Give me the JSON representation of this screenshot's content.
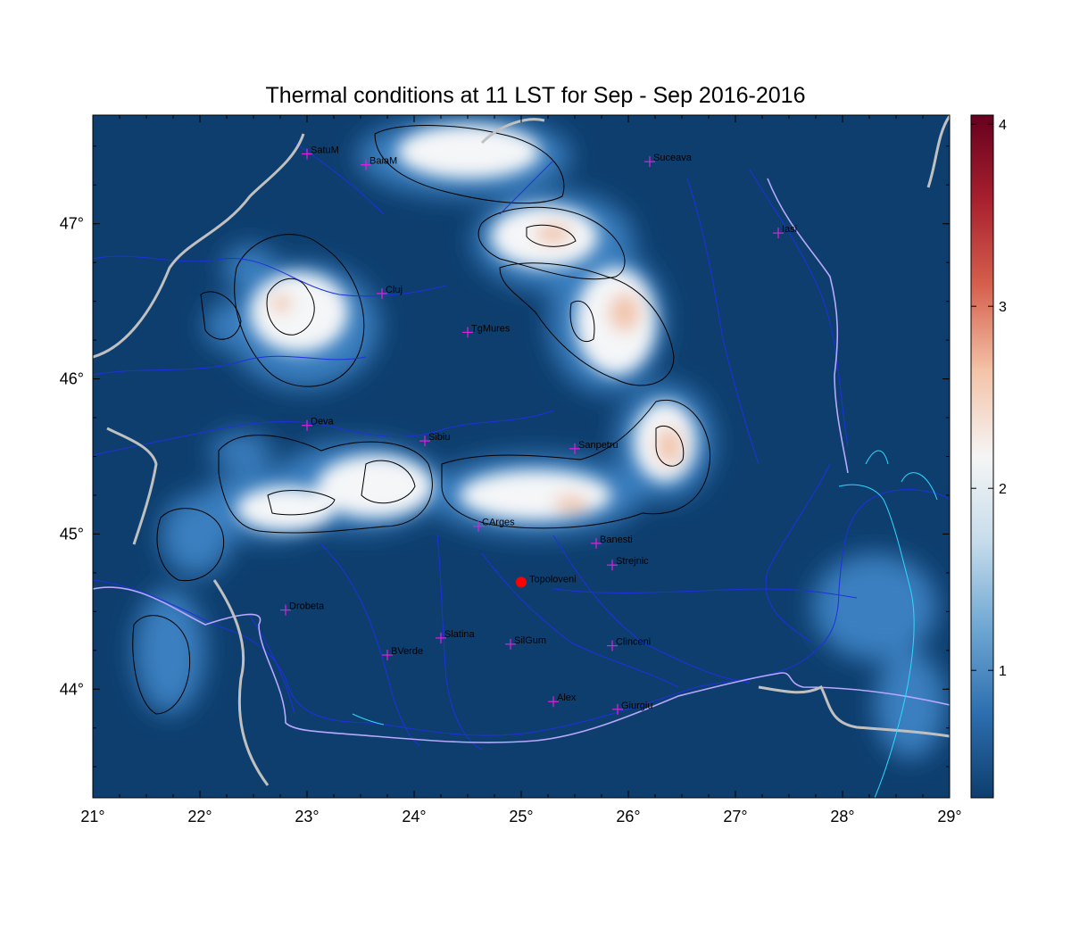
{
  "title": "Thermal conditions at 11 LST for Sep - Sep  2016-2016",
  "map": {
    "lon_range": [
      21,
      29
    ],
    "lat_range": [
      43.3,
      47.7
    ],
    "lon_ticks": [
      "21°",
      "22°",
      "23°",
      "24°",
      "25°",
      "26°",
      "27°",
      "28°",
      "29°"
    ],
    "lon_tick_values": [
      21,
      22,
      23,
      24,
      25,
      26,
      27,
      28,
      29
    ],
    "lat_ticks": [
      "44°",
      "45°",
      "46°",
      "47°"
    ],
    "lat_tick_values": [
      44,
      45,
      46,
      47
    ],
    "colors": {
      "background": "#0d3e6e",
      "mid": "#3a7fc0",
      "white": "#f4f6f8",
      "warm": "#f2c6ae",
      "rivers": "#2030e0",
      "border": "#c0c0c0",
      "coast": "#30d8ff",
      "contour": "#000000",
      "city_marker": "#e020e0",
      "highlight": "#ff0000"
    }
  },
  "colorbar": {
    "min": 0.3,
    "max": 4.05,
    "tick_labels": [
      "1",
      "2",
      "3",
      "4"
    ],
    "tick_values": [
      1,
      2,
      3,
      4
    ],
    "colors": [
      "#0d3e6e",
      "#2d6fb0",
      "#6fa8d3",
      "#c6dceb",
      "#f5f5f5",
      "#f4c3a8",
      "#d6604d",
      "#a8202e",
      "#67001f"
    ]
  },
  "cities": [
    {
      "name": "SatuM",
      "lon": 23.0,
      "lat": 47.45
    },
    {
      "name": "BaiaM",
      "lon": 23.55,
      "lat": 47.38
    },
    {
      "name": "Suceava",
      "lon": 26.2,
      "lat": 47.4
    },
    {
      "name": "Iasi",
      "lon": 27.4,
      "lat": 46.94
    },
    {
      "name": "Cluj",
      "lon": 23.7,
      "lat": 46.55
    },
    {
      "name": "TgMures",
      "lon": 24.5,
      "lat": 46.3
    },
    {
      "name": "Deva",
      "lon": 23.0,
      "lat": 45.7
    },
    {
      "name": "Sibiu",
      "lon": 24.1,
      "lat": 45.6
    },
    {
      "name": "Sanpetru",
      "lon": 25.5,
      "lat": 45.55
    },
    {
      "name": "CArges",
      "lon": 24.6,
      "lat": 45.05
    },
    {
      "name": "Banesti",
      "lon": 25.7,
      "lat": 44.94
    },
    {
      "name": "Strejnic",
      "lon": 25.85,
      "lat": 44.8
    },
    {
      "name": "Drobeta",
      "lon": 22.8,
      "lat": 44.51
    },
    {
      "name": "Slatina",
      "lon": 24.25,
      "lat": 44.33
    },
    {
      "name": "SilGum",
      "lon": 24.9,
      "lat": 44.29
    },
    {
      "name": "Clinceni",
      "lon": 25.85,
      "lat": 44.28
    },
    {
      "name": "BVerde",
      "lon": 23.75,
      "lat": 44.22
    },
    {
      "name": "Alex",
      "lon": 25.3,
      "lat": 43.92
    },
    {
      "name": "Giurgiu",
      "lon": 25.9,
      "lat": 43.87
    }
  ],
  "highlight_site": {
    "name": "Topoloveni",
    "lon": 25.0,
    "lat": 44.69
  }
}
